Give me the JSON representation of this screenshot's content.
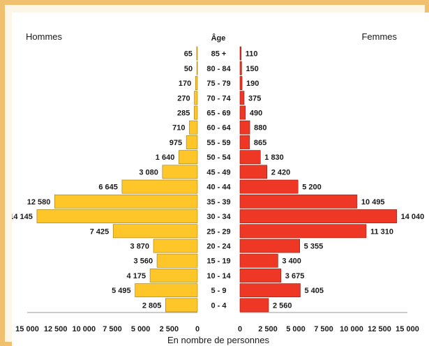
{
  "chart_data": {
    "type": "bar",
    "subtype": "population-pyramid",
    "left_label": "Hommes",
    "right_label": "Femmes",
    "category_header": "Âge",
    "xlabel": "En nombre de personnes",
    "xlim": [
      0,
      15000
    ],
    "x_ticks_left": [
      "15 000",
      "12 500",
      "10 000",
      "7 500",
      "5 000",
      "2 500",
      "0"
    ],
    "x_ticks_right": [
      "0",
      "2 500",
      "5 000",
      "7 500",
      "10 000",
      "12 500",
      "15 000"
    ],
    "x_tick_values": [
      0,
      2500,
      5000,
      7500,
      10000,
      12500,
      15000
    ],
    "categories": [
      "85 +",
      "80 - 84",
      "75 - 79",
      "70 - 74",
      "65 - 69",
      "60 - 64",
      "55 - 59",
      "50 - 54",
      "45 - 49",
      "40 - 44",
      "35 - 39",
      "30 - 34",
      "25 - 29",
      "20 - 24",
      "15 - 19",
      "10 - 14",
      "5 - 9",
      "0 - 4"
    ],
    "series": [
      {
        "name": "Hommes",
        "color": "#ffc629",
        "values": [
          65,
          50,
          170,
          270,
          285,
          710,
          975,
          1640,
          3080,
          6645,
          12580,
          14145,
          7425,
          3870,
          3560,
          4175,
          5495,
          2805
        ],
        "labels": [
          "65",
          "50",
          "170",
          "270",
          "285",
          "710",
          "975",
          "1 640",
          "3 080",
          "6 645",
          "12 580",
          "14 145",
          "7 425",
          "3 870",
          "3 560",
          "4 175",
          "5 495",
          "2 805"
        ]
      },
      {
        "name": "Femmes",
        "color": "#ee3724",
        "values": [
          110,
          150,
          190,
          375,
          490,
          880,
          865,
          1830,
          2420,
          5200,
          10495,
          14040,
          11310,
          5355,
          3400,
          3675,
          5405,
          2560
        ],
        "labels": [
          "110",
          "150",
          "190",
          "375",
          "490",
          "880",
          "865",
          "1 830",
          "2 420",
          "5 200",
          "10 495",
          "14 040",
          "11 310",
          "5 355",
          "3 400",
          "3 675",
          "5 405",
          "2 560"
        ]
      }
    ],
    "grid": false,
    "legend": "none"
  }
}
